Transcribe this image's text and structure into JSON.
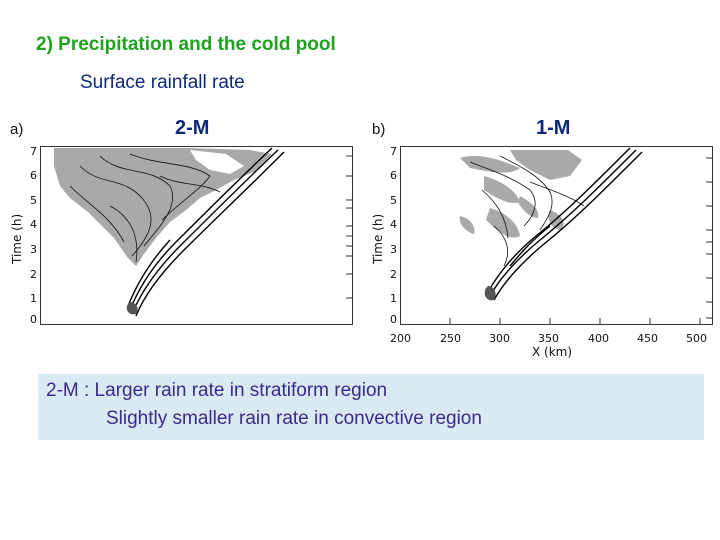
{
  "slide": {
    "title": "2) Precipitation and the cold pool",
    "subtitle": "Surface rainfall rate"
  },
  "panel_a": {
    "letter": "a)",
    "label": "2-M",
    "ylabel": "Time (h)",
    "yticks": [
      "0",
      "1",
      "2",
      "3",
      "4",
      "5",
      "6",
      "7"
    ]
  },
  "panel_b": {
    "letter": "b)",
    "label": "1-M",
    "ylabel": "Time (h)",
    "yticks": [
      "0",
      "1",
      "2",
      "3",
      "4",
      "5",
      "6",
      "7"
    ],
    "xlabel": "X (km)",
    "xticks": [
      "200",
      "250",
      "300",
      "350",
      "400",
      "450",
      "500"
    ]
  },
  "note": {
    "line1": "2-M : Larger rain rate in stratiform region",
    "line2": "Slightly smaller rain rate in convective region"
  },
  "colors": {
    "title": "#1fa31f",
    "text": "#0d2a7a",
    "note_background": "#daeaf3",
    "note_text": "#3a2a8a",
    "stratiform_shading": "#a9a9a9"
  }
}
